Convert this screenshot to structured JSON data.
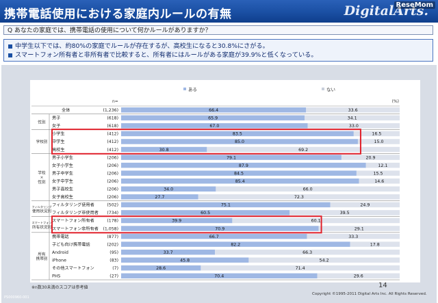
{
  "header": {
    "title": "携帯電話使用における家庭内ルールの有無",
    "logo": "DigitalArts.",
    "watermark": "ReseMom"
  },
  "question": "Q あなたの家庭では、携帯電話の使用について何かルールがありますか？",
  "summary": [
    "中学生以下では、約80%の家庭でルールが存在するが、高校生になると30.8%にさがる。",
    "スマートフォン所有者と非所有者で比較すると、所有者にはルールがある家庭が39.9%と低くなっている。"
  ],
  "footer": {
    "note": "※n数30未満のスコアは参考値",
    "page_number": "14",
    "copyright": "Copyright ©1995-2011 Digital Arts Inc.  All Rights Reserved.",
    "code": "PS000960-001"
  },
  "colors": {
    "header_bg": "#1a4fa3",
    "bar_yes": "#9fb8e4",
    "bar_no": "#dde2ec",
    "highlight_box": "#e0202a"
  },
  "chart_data": {
    "type": "bar",
    "orientation": "horizontal",
    "stacked": true,
    "legend": [
      "ある",
      "ない"
    ],
    "n_label": "n=",
    "percent_label": "(%)",
    "rows": [
      {
        "group": "",
        "label": "全体",
        "n": "(1,236)",
        "yes": 66.4,
        "no": 33.6
      },
      {
        "group": "性別",
        "label": "男子",
        "n": "(618)",
        "yes": 65.9,
        "no": 34.1
      },
      {
        "group": "性別",
        "label": "女子",
        "n": "(618)",
        "yes": 67.0,
        "no": 33.0
      },
      {
        "group": "学校別",
        "label": "小学生",
        "n": "(412)",
        "yes": 83.5,
        "no": 16.5
      },
      {
        "group": "学校別",
        "label": "中学生",
        "n": "(412)",
        "yes": 85.0,
        "no": 15.0
      },
      {
        "group": "学校別",
        "label": "高校生",
        "n": "(412)",
        "yes": 30.8,
        "no": 69.2
      },
      {
        "group": "学校×性別",
        "label": "男子小学生",
        "n": "(206)",
        "yes": 79.1,
        "no": 20.9
      },
      {
        "group": "学校×性別",
        "label": "女子小学生",
        "n": "(206)",
        "yes": 87.9,
        "no": 12.1
      },
      {
        "group": "学校×性別",
        "label": "男子中学生",
        "n": "(206)",
        "yes": 84.5,
        "no": 15.5
      },
      {
        "group": "学校×性別",
        "label": "女子中学生",
        "n": "(206)",
        "yes": 85.4,
        "no": 14.6
      },
      {
        "group": "学校×性別",
        "label": "男子高校生",
        "n": "(206)",
        "yes": 34.0,
        "no": 66.0
      },
      {
        "group": "学校×性別",
        "label": "女子高校生",
        "n": "(206)",
        "yes": 27.7,
        "no": 72.3
      },
      {
        "group": "フィルタリング使用状況別",
        "label": "フィルタリング使用者",
        "n": "(502)",
        "yes": 75.1,
        "no": 24.9
      },
      {
        "group": "フィルタリング使用状況別",
        "label": "フィルタリング非使用者",
        "n": "(734)",
        "yes": 60.5,
        "no": 39.5
      },
      {
        "group": "スマートフォン所有状況別",
        "label": "スマートフォン所有者",
        "n": "(178)",
        "yes": 39.9,
        "no": 60.1
      },
      {
        "group": "スマートフォン所有状況別",
        "label": "スマートフォン非所有者",
        "n": "(1,058)",
        "yes": 70.9,
        "no": 29.1
      },
      {
        "group": "所有携帯別",
        "label": "携帯電話",
        "n": "(877)",
        "yes": 66.7,
        "no": 33.3
      },
      {
        "group": "所有携帯別",
        "label": "子ども向け携帯電話",
        "n": "(202)",
        "yes": 82.2,
        "no": 17.8
      },
      {
        "group": "所有携帯別",
        "label": "Android",
        "n": "(95)",
        "yes": 33.7,
        "no": 66.3
      },
      {
        "group": "所有携帯別",
        "label": "iPhone",
        "n": "(83)",
        "yes": 45.8,
        "no": 54.2
      },
      {
        "group": "所有携帯別",
        "label": "その他スマートフォン",
        "n": "(7)",
        "yes": 28.6,
        "no": 71.4
      },
      {
        "group": "所有携帯別",
        "label": "PHS",
        "n": "(27)",
        "yes": 70.4,
        "no": 29.6
      }
    ],
    "groups": [
      {
        "label": "",
        "lines": [
          "全体"
        ],
        "rows": [
          0,
          0
        ]
      },
      {
        "label": "性別",
        "lines": [
          "性別"
        ],
        "rows": [
          1,
          2
        ]
      },
      {
        "label": "学校別",
        "lines": [
          "学校別"
        ],
        "rows": [
          3,
          5
        ]
      },
      {
        "label": "学校×性別",
        "lines": [
          "学校",
          "×",
          "性別"
        ],
        "rows": [
          6,
          11
        ]
      },
      {
        "label": "フィルタリング使用状況別",
        "lines": [
          "フィルタリング",
          "使用状況別"
        ],
        "rows": [
          12,
          13
        ]
      },
      {
        "label": "スマートフォン所有状況別",
        "lines": [
          "スマートフォン",
          "所有状況別"
        ],
        "rows": [
          14,
          15
        ]
      },
      {
        "label": "所有携帯別",
        "lines": [
          "所有",
          "携帯別"
        ],
        "rows": [
          16,
          21
        ]
      }
    ],
    "highlights": [
      [
        3,
        5
      ],
      [
        14,
        15
      ]
    ]
  }
}
